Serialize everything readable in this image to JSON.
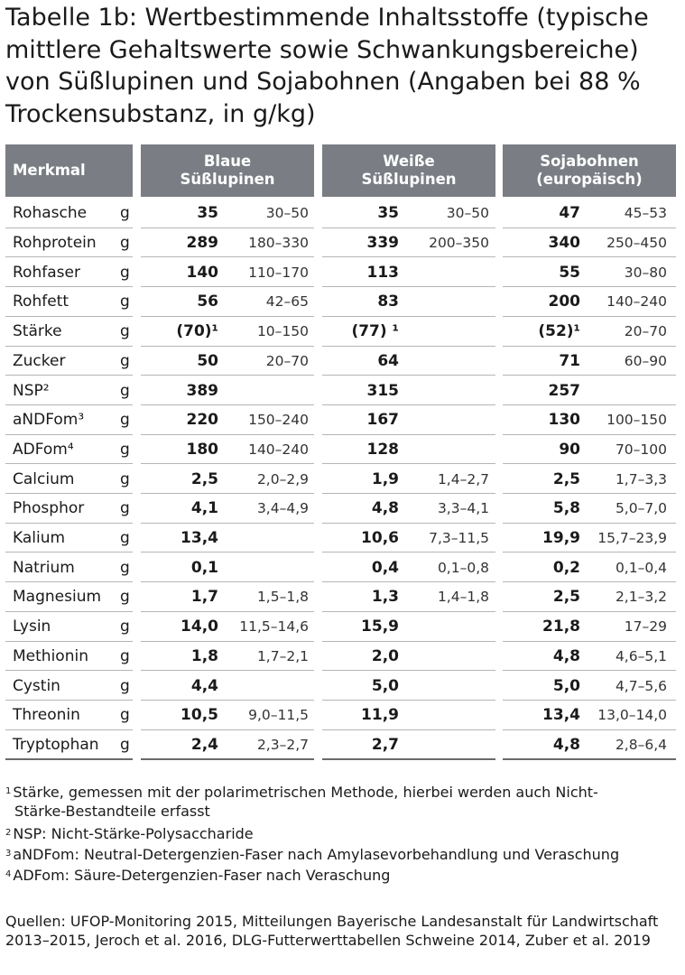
{
  "title": "Tabelle 1b: Wertbestimmende Inhaltsstoffe (typische mittlere Gehaltswerte sowie Schwankungsbereiche) von Süßlupinen und Sojabohnen (Angaben bei 88 % Trockensubstanz, in g/kg)",
  "headers": {
    "merkmal": "Merkmal",
    "col1": [
      "Blaue",
      "Süßlupinen"
    ],
    "col2": [
      "Weiße",
      "Süßlupinen"
    ],
    "col3": [
      "Sojabohnen",
      "(europäisch)"
    ]
  },
  "rows": [
    {
      "name": "Rohasche",
      "unit": "g",
      "v1": "35",
      "r1": "30–50",
      "v2": "35",
      "r2": "30–50",
      "v3": "47",
      "r3": "45–53"
    },
    {
      "name": "Rohprotein",
      "unit": "g",
      "v1": "289",
      "r1": "180–330",
      "v2": "339",
      "r2": "200–350",
      "v3": "340",
      "r3": "250–450"
    },
    {
      "name": "Rohfaser",
      "unit": "g",
      "v1": "140",
      "r1": "110–170",
      "v2": "113",
      "r2": "",
      "v3": "55",
      "r3": "30–80"
    },
    {
      "name": "Rohfett",
      "unit": "g",
      "v1": "56",
      "r1": "42–65",
      "v2": "83",
      "r2": "",
      "v3": "200",
      "r3": "140–240"
    },
    {
      "name": "Stärke",
      "unit": "g",
      "v1": "(70)¹",
      "r1": "10–150",
      "v2": "(77) ¹",
      "r2": "",
      "v3": "(52)¹",
      "r3": "20–70"
    },
    {
      "name": "Zucker",
      "unit": "g",
      "v1": "50",
      "r1": "20–70",
      "v2": "64",
      "r2": "",
      "v3": "71",
      "r3": "60–90"
    },
    {
      "name": "NSP²",
      "unit": "g",
      "v1": "389",
      "r1": "",
      "v2": "315",
      "r2": "",
      "v3": "257",
      "r3": ""
    },
    {
      "name": "aNDFom³",
      "unit": "g",
      "v1": "220",
      "r1": "150–240",
      "v2": "167",
      "r2": "",
      "v3": "130",
      "r3": "100–150"
    },
    {
      "name": "ADFom⁴",
      "unit": "g",
      "v1": "180",
      "r1": "140–240",
      "v2": "128",
      "r2": "",
      "v3": "90",
      "r3": "70–100"
    },
    {
      "name": "Calcium",
      "unit": "g",
      "v1": "2,5",
      "r1": "2,0–2,9",
      "v2": "1,9",
      "r2": "1,4–2,7",
      "v3": "2,5",
      "r3": "1,7–3,3"
    },
    {
      "name": "Phosphor",
      "unit": "g",
      "v1": "4,1",
      "r1": "3,4–4,9",
      "v2": "4,8",
      "r2": "3,3–4,1",
      "v3": "5,8",
      "r3": "5,0–7,0"
    },
    {
      "name": "Kalium",
      "unit": "g",
      "v1": "13,4",
      "r1": "",
      "v2": "10,6",
      "r2": "7,3–11,5",
      "v3": "19,9",
      "r3": "15,7–23,9"
    },
    {
      "name": "Natrium",
      "unit": "g",
      "v1": "0,1",
      "r1": "",
      "v2": "0,4",
      "r2": "0,1–0,8",
      "v3": "0,2",
      "r3": "0,1–0,4"
    },
    {
      "name": "Magnesium",
      "unit": "g",
      "v1": "1,7",
      "r1": "1,5–1,8",
      "v2": "1,3",
      "r2": "1,4–1,8",
      "v3": "2,5",
      "r3": "2,1–3,2"
    },
    {
      "name": "Lysin",
      "unit": "g",
      "v1": "14,0",
      "r1": "11,5–14,6",
      "v2": "15,9",
      "r2": "",
      "v3": "21,8",
      "r3": "17–29"
    },
    {
      "name": "Methionin",
      "unit": "g",
      "v1": "1,8",
      "r1": "1,7–2,1",
      "v2": "2,0",
      "r2": "",
      "v3": "4,8",
      "r3": "4,6–5,1"
    },
    {
      "name": "Cystin",
      "unit": "g",
      "v1": "4,4",
      "r1": "",
      "v2": "5,0",
      "r2": "",
      "v3": "5,0",
      "r3": "4,7–5,6"
    },
    {
      "name": "Threonin",
      "unit": "g",
      "v1": "10,5",
      "r1": "9,0–11,5",
      "v2": "11,9",
      "r2": "",
      "v3": "13,4",
      "r3": "13,0–14,0"
    },
    {
      "name": "Tryptophan",
      "unit": "g",
      "v1": "2,4",
      "r1": "2,3–2,7",
      "v2": "2,7",
      "r2": "",
      "v3": "4,8",
      "r3": "2,8–6,4"
    }
  ],
  "footnotes": {
    "f1_mark": "1",
    "f1_line1": "Stärke, gemessen mit der polarimetrischen Methode, hierbei werden auch Nicht-",
    "f1_line2": "Stärke-Bestandteile erfasst",
    "f2_mark": "2",
    "f2": "NSP: Nicht-Stärke-Polysaccharide",
    "f3_mark": "3",
    "f3": "aNDFom: Neutral-Detergenzien-Faser nach Amylasevorbehandlung und Veraschung",
    "f4_mark": "4",
    "f4": "ADFom: Säure-Detergenzien-Faser nach Veraschung"
  },
  "sources": "Quellen: UFOP-Monitoring 2015, Mitteilungen Bayerische Landesanstalt für Landwirtschaft 2013–2015, Jeroch et al. 2016, DLG-Futterwerttabellen Schweine 2014, Zuber et al. 2019"
}
